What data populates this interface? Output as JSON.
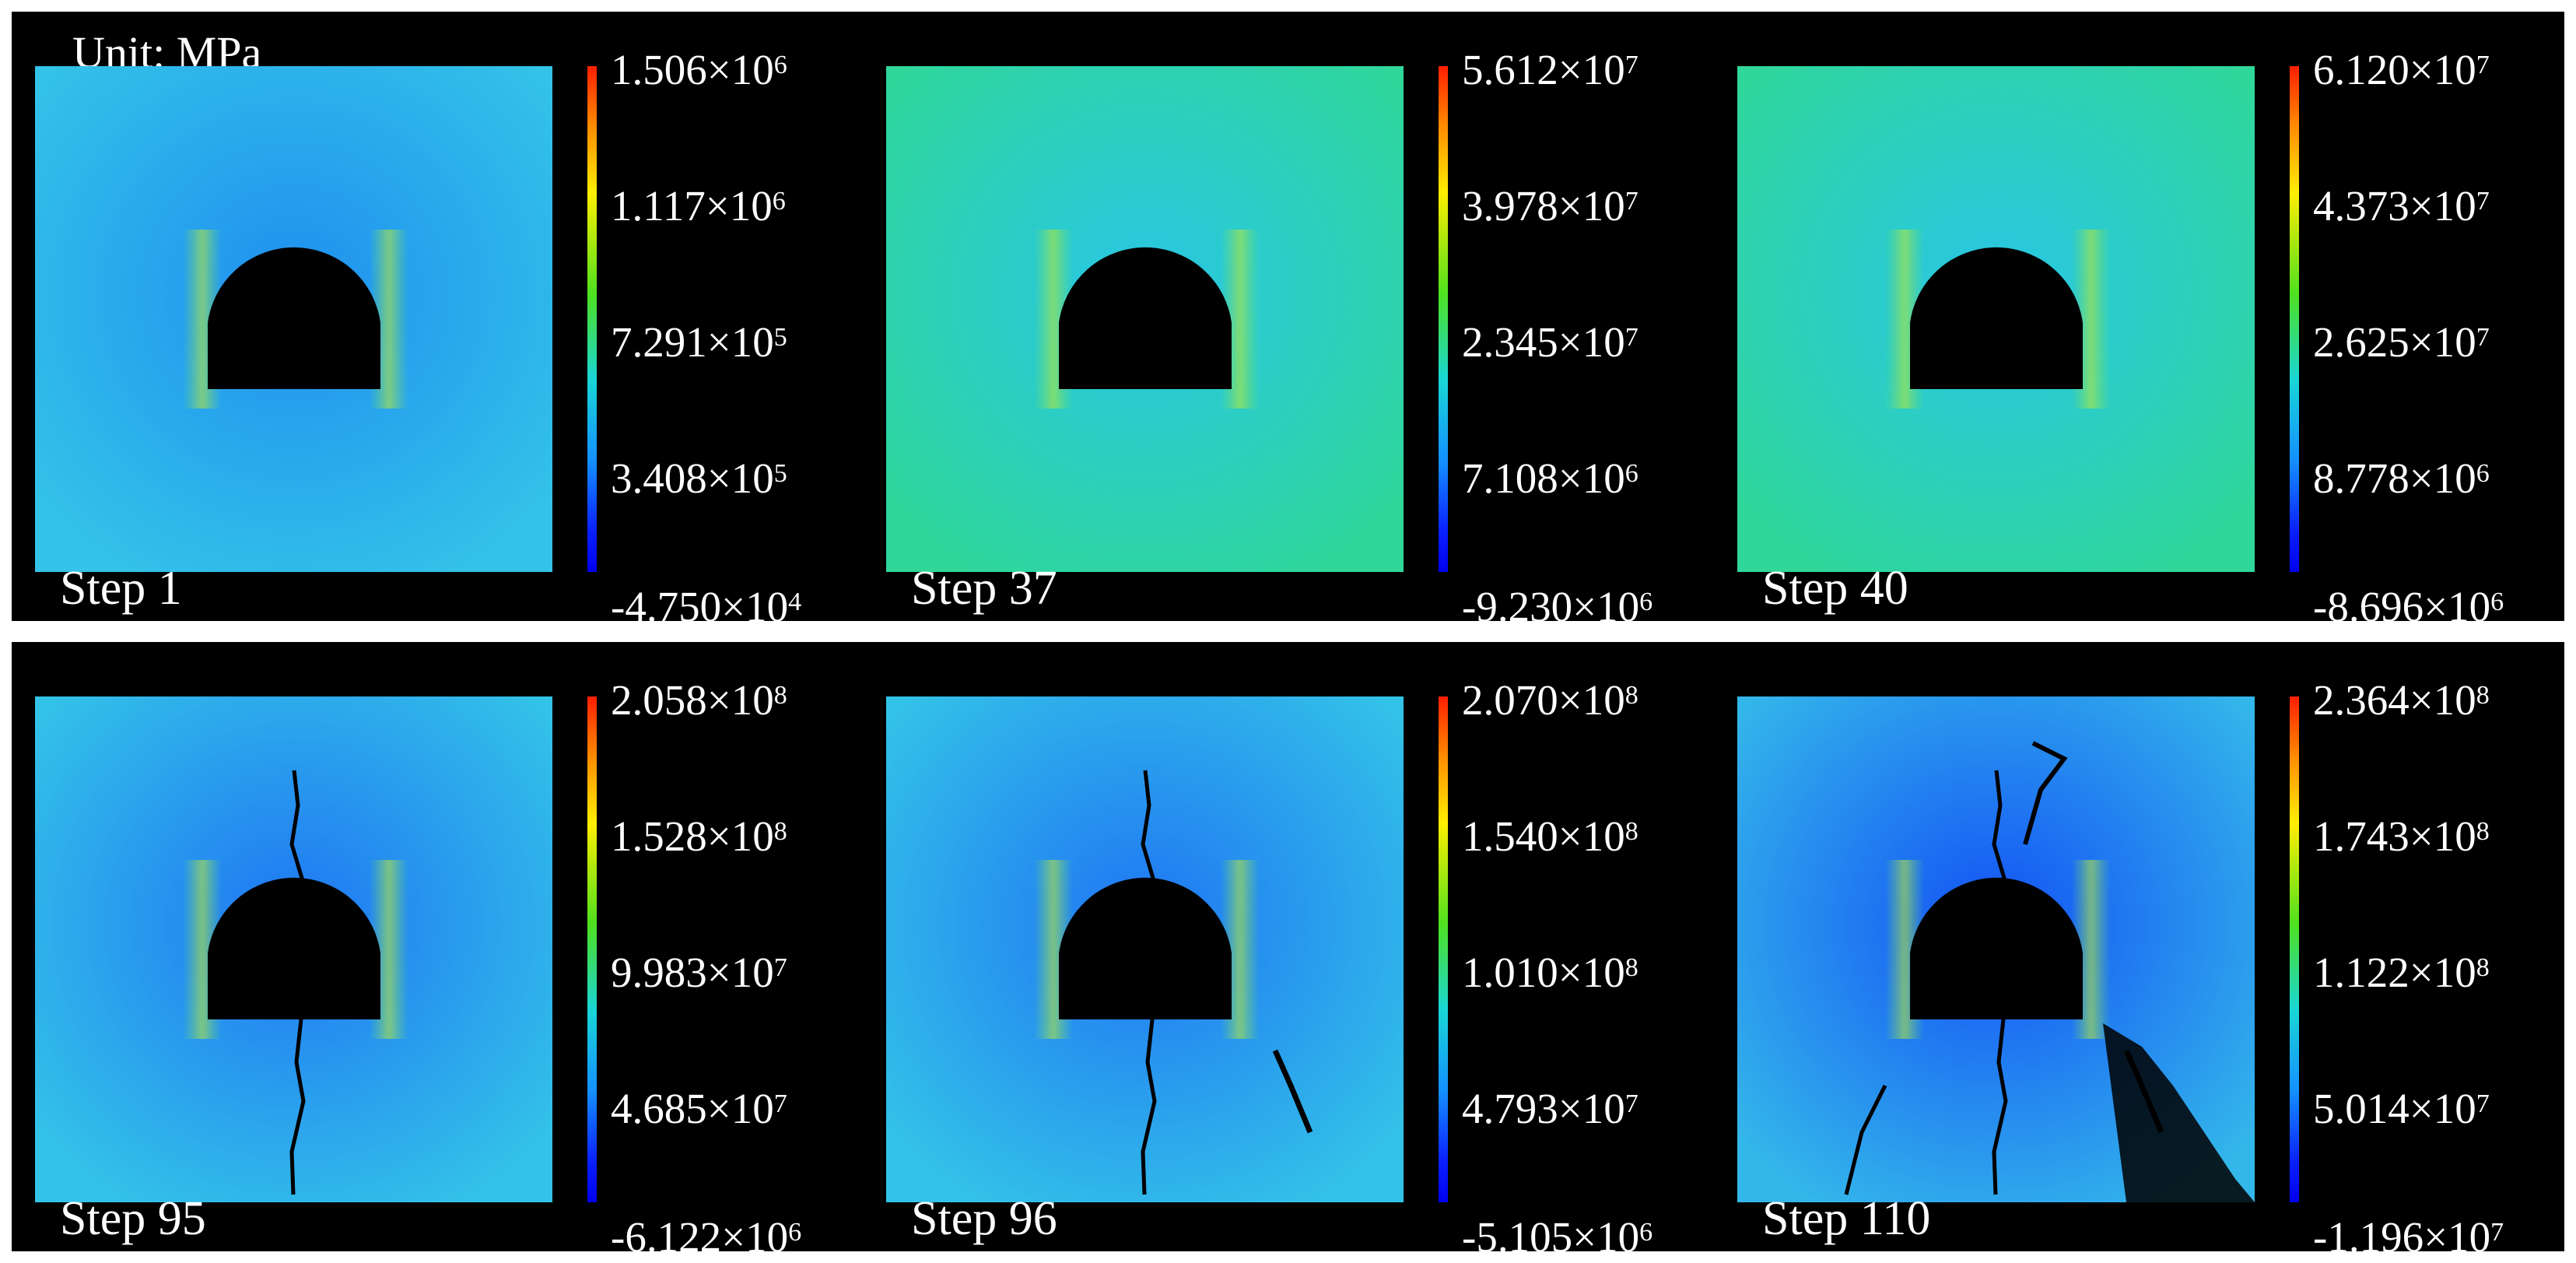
{
  "unit_label": "Unit: MPa",
  "panels": [
    {
      "step": "Step 1",
      "ticks": [
        {
          "m": "1.506",
          "e": "6"
        },
        {
          "m": "1.117",
          "e": "6"
        },
        {
          "m": "7.291",
          "e": "5"
        },
        {
          "m": "3.408",
          "e": "5"
        },
        {
          "m": "-4.750",
          "e": "4"
        }
      ],
      "bg": "#33c3e8",
      "bg2": "#1f8ff0"
    },
    {
      "step": "Step 37",
      "ticks": [
        {
          "m": "5.612",
          "e": "7"
        },
        {
          "m": "3.978",
          "e": "7"
        },
        {
          "m": "2.345",
          "e": "7"
        },
        {
          "m": "7.108",
          "e": "6"
        },
        {
          "m": "-9.230",
          "e": "6"
        }
      ],
      "bg": "#2fd79a",
      "bg2": "#29c6e6"
    },
    {
      "step": "Step 40",
      "ticks": [
        {
          "m": "6.120",
          "e": "7"
        },
        {
          "m": "4.373",
          "e": "7"
        },
        {
          "m": "2.625",
          "e": "7"
        },
        {
          "m": "8.778",
          "e": "6"
        },
        {
          "m": "-8.696",
          "e": "6"
        }
      ],
      "bg": "#2fd79a",
      "bg2": "#29c6e6"
    },
    {
      "step": "Step 95",
      "ticks": [
        {
          "m": "2.058",
          "e": "8"
        },
        {
          "m": "1.528",
          "e": "8"
        },
        {
          "m": "9.983",
          "e": "7"
        },
        {
          "m": "4.685",
          "e": "7"
        },
        {
          "m": "-6.122",
          "e": "6"
        }
      ],
      "bg": "#33c3e8",
      "bg2": "#1f75f3"
    },
    {
      "step": "Step 96",
      "ticks": [
        {
          "m": "2.070",
          "e": "8"
        },
        {
          "m": "1.540",
          "e": "8"
        },
        {
          "m": "1.010",
          "e": "8"
        },
        {
          "m": "4.793",
          "e": "7"
        },
        {
          "m": "-5.105",
          "e": "6"
        }
      ],
      "bg": "#33c3e8",
      "bg2": "#1f75f3"
    },
    {
      "step": "Step 110",
      "ticks": [
        {
          "m": "2.364",
          "e": "8"
        },
        {
          "m": "1.743",
          "e": "8"
        },
        {
          "m": "1.122",
          "e": "8"
        },
        {
          "m": "5.014",
          "e": "7"
        },
        {
          "m": "-1.196",
          "e": "7"
        }
      ],
      "bg": "#33b6ea",
      "bg2": "#1452f5"
    }
  ]
}
